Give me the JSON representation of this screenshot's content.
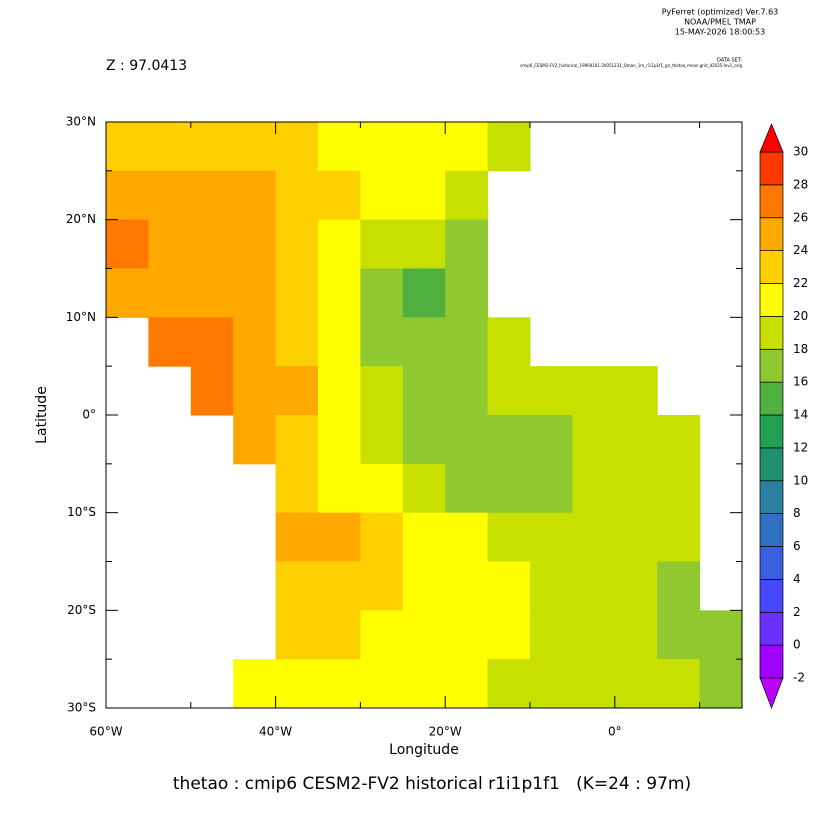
{
  "chart_data": {
    "type": "heatmap",
    "header": [
      "PyFerret (optimized) Ver.7.63",
      "NOAA/PMEL TMAP",
      "15-MAY-2026 18:00:53"
    ],
    "dataset_label": "DATA SET:",
    "dataset": "cmip6_CESM2-FV2_historical_19900101-20051231_Omon_1m_r1i1p1f1_gn_thetao_mean.grid_d2025-lev1_orig",
    "subtitle": "Z : 97.0413",
    "title": "thetao : cmip6 CESM2-FV2 historical r1i1p1f1   (K=24 : 97m)",
    "xlabel": "Longitude",
    "ylabel": "Latitude",
    "x": [
      -57.5,
      -52.5,
      -47.5,
      -42.5,
      -37.5,
      -32.5,
      -27.5,
      -22.5,
      -17.5,
      -12.5,
      -7.5,
      -2.5,
      2.5,
      7.5,
      12.5
    ],
    "y": [
      27.5,
      22.5,
      17.5,
      12.5,
      7.5,
      2.5,
      -2.5,
      -7.5,
      -12.5,
      -17.5,
      -22.5,
      -27.5
    ],
    "values": [
      [
        23,
        23,
        23,
        22,
        22,
        21,
        21,
        21,
        20,
        19,
        null,
        null,
        null,
        null,
        null
      ],
      [
        25,
        25,
        25,
        24,
        23,
        22,
        20,
        20,
        19,
        null,
        null,
        null,
        null,
        null,
        null
      ],
      [
        26,
        25,
        25,
        24,
        23,
        21,
        19,
        18,
        17,
        null,
        null,
        null,
        null,
        null,
        null
      ],
      [
        25,
        25,
        25,
        24,
        22,
        20,
        17,
        15,
        16,
        null,
        null,
        null,
        null,
        null,
        null
      ],
      [
        null,
        26,
        26,
        25,
        23,
        20,
        17,
        16,
        17,
        18,
        null,
        null,
        null,
        null,
        null
      ],
      [
        null,
        null,
        26,
        25,
        24,
        21,
        19,
        17,
        17,
        18,
        18,
        19,
        19,
        null,
        null
      ],
      [
        null,
        null,
        null,
        25,
        23,
        21,
        19,
        17,
        16,
        16,
        17,
        18,
        19,
        19,
        null
      ],
      [
        null,
        null,
        null,
        null,
        22,
        21,
        20,
        18,
        17,
        17,
        17,
        18,
        19,
        19,
        null
      ],
      [
        null,
        null,
        null,
        null,
        24,
        24,
        23,
        21,
        20,
        19,
        19,
        19,
        19,
        18,
        null
      ],
      [
        null,
        null,
        null,
        null,
        23,
        23,
        22,
        21,
        20,
        20,
        19,
        19,
        19,
        17,
        null
      ],
      [
        null,
        null,
        null,
        null,
        22,
        22,
        21,
        21,
        20,
        20,
        19,
        19,
        19,
        17,
        17
      ],
      [
        null,
        null,
        null,
        21,
        21,
        20,
        20,
        20,
        20,
        19,
        19,
        19,
        19,
        18,
        17
      ]
    ],
    "xlim": [
      -60,
      15
    ],
    "ylim": [
      -30,
      30
    ],
    "xticks": [
      {
        "value": -60,
        "label": "60°W"
      },
      {
        "value": -40,
        "label": "40°W"
      },
      {
        "value": -20,
        "label": "20°W"
      },
      {
        "value": 0,
        "label": "0°"
      }
    ],
    "xminorticks": [
      -50,
      -30,
      -10,
      10
    ],
    "yticks": [
      {
        "value": 30,
        "label": "30°N"
      },
      {
        "value": 20,
        "label": "20°N"
      },
      {
        "value": 10,
        "label": "10°N"
      },
      {
        "value": 0,
        "label": "0°"
      },
      {
        "value": -10,
        "label": "10°S"
      },
      {
        "value": -20,
        "label": "20°S"
      },
      {
        "value": -30,
        "label": "30°S"
      }
    ],
    "yminorticks": [
      25,
      15,
      5,
      -5,
      -15,
      -25
    ],
    "levels": [
      -2,
      0,
      2,
      4,
      6,
      8,
      10,
      12,
      14,
      16,
      18,
      20,
      22,
      24,
      26,
      28,
      30
    ],
    "colors": [
      "#a000ff",
      "#6a30ff",
      "#4848ff",
      "#3a60e0",
      "#3070c0",
      "#2a80a0",
      "#209070",
      "#20a050",
      "#50b040",
      "#90c830",
      "#c8e000",
      "#ffff00",
      "#ffd000",
      "#ffa800",
      "#ff7800",
      "#ff3800"
    ],
    "under_color": "#c000ff",
    "over_color": "#ff0000"
  }
}
